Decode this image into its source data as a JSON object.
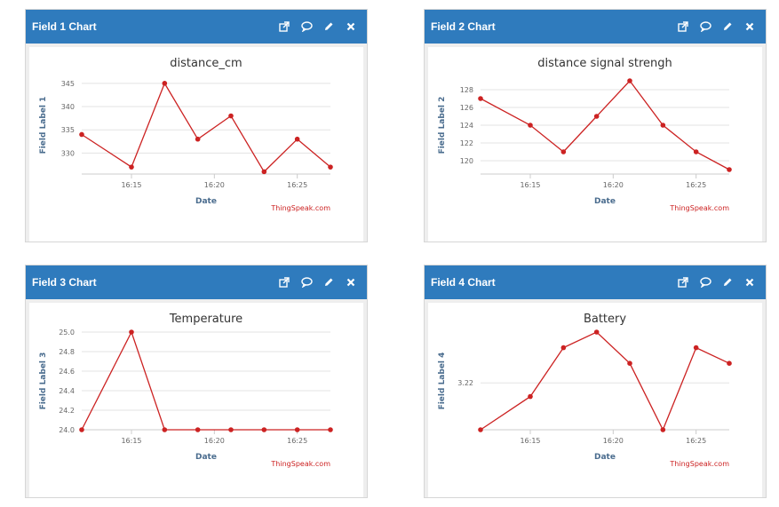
{
  "panels": [
    {
      "header_title": "Field 1 Chart",
      "chart_data": {
        "type": "line",
        "title": "distance_cm",
        "xlabel": "Date",
        "ylabel": "Field Label 1",
        "x": [
          "16:12",
          "16:15",
          "16:17",
          "16:19",
          "16:21",
          "16:23",
          "16:25",
          "16:27"
        ],
        "values": [
          334,
          327,
          345,
          333,
          338,
          326,
          333,
          327
        ],
        "yticks": [
          330,
          335,
          340,
          345
        ],
        "ylim": [
          325.5,
          346.5
        ],
        "xticks": [
          "16:15",
          "16:20",
          "16:25"
        ],
        "credit": "ThingSpeak.com",
        "line_color": "#cc2222"
      }
    },
    {
      "header_title": "Field 2 Chart",
      "chart_data": {
        "type": "line",
        "title": "distance signal strengh",
        "xlabel": "Date",
        "ylabel": "Field Label 2",
        "x": [
          "16:12",
          "16:15",
          "16:17",
          "16:19",
          "16:21",
          "16:23",
          "16:25",
          "16:27"
        ],
        "values": [
          127,
          124,
          121,
          125,
          129,
          124,
          121,
          119
        ],
        "yticks": [
          120,
          122,
          124,
          126,
          128
        ],
        "ylim": [
          118.5,
          129.5
        ],
        "xticks": [
          "16:15",
          "16:20",
          "16:25"
        ],
        "credit": "ThingSpeak.com",
        "line_color": "#cc2222"
      }
    },
    {
      "header_title": "Field 3 Chart",
      "chart_data": {
        "type": "line",
        "title": "Temperature",
        "xlabel": "Date",
        "ylabel": "Field Label 3",
        "x": [
          "16:12",
          "16:15",
          "16:17",
          "16:19",
          "16:21",
          "16:23",
          "16:25",
          "16:27"
        ],
        "values": [
          24.0,
          25.0,
          24.0,
          24.0,
          24.0,
          24.0,
          24.0,
          24.0
        ],
        "yticks": [
          "24.0",
          "24.2",
          "24.4",
          "24.6",
          "24.8",
          "25.0"
        ],
        "ylim": [
          24.0,
          25.0
        ],
        "xticks": [
          "16:15",
          "16:20",
          "16:25"
        ],
        "credit": "ThingSpeak.com",
        "line_color": "#cc2222"
      }
    },
    {
      "header_title": "Field 4 Chart",
      "chart_data": {
        "type": "line",
        "title": "Battery",
        "xlabel": "Date",
        "ylabel": "Field Label 4",
        "x": [
          "16:12",
          "16:15",
          "16:17",
          "16:19",
          "16:21",
          "16:23",
          "16:25",
          "16:27"
        ],
        "values": [
          3.196,
          3.213,
          3.238,
          3.246,
          3.23,
          3.196,
          3.238,
          3.23
        ],
        "yticks": [
          "3.22"
        ],
        "ytick_values": [
          3.22
        ],
        "ylim": [
          3.196,
          3.246
        ],
        "xticks": [
          "16:15",
          "16:20",
          "16:25"
        ],
        "credit": "ThingSpeak.com",
        "line_color": "#cc2222"
      }
    }
  ],
  "icons": [
    "external-link-icon",
    "comment-icon",
    "pencil-icon",
    "close-icon"
  ]
}
